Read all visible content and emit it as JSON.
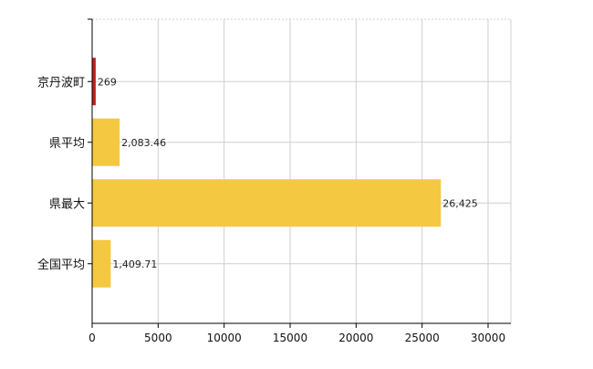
{
  "chart_data": {
    "type": "bar",
    "orientation": "horizontal",
    "categories": [
      "京丹波町",
      "県平均",
      "県最大",
      "全国平均"
    ],
    "values": [
      269,
      2083.46,
      26425,
      1409.71
    ],
    "value_labels": [
      "269",
      "2,083.46",
      "26,425",
      "1,409.71"
    ],
    "bar_colors": [
      "#c0201c",
      "#f5c842",
      "#f5c842",
      "#f5c842"
    ],
    "xlim": [
      0,
      30000
    ],
    "x_ticks": [
      0,
      5000,
      10000,
      15000,
      20000,
      25000,
      30000
    ],
    "x_tick_labels": [
      "0",
      "5000",
      "10000",
      "15000",
      "20000",
      "25000",
      "30000"
    ],
    "grid": true,
    "title": "",
    "xlabel": "",
    "ylabel": ""
  }
}
